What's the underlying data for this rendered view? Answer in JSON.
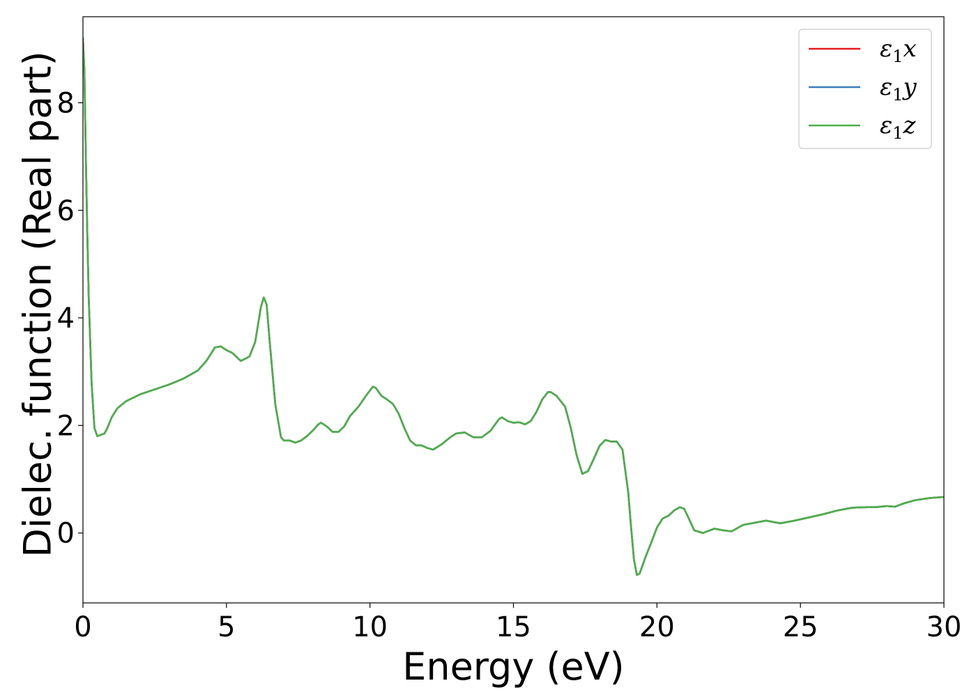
{
  "chart_data": {
    "type": "line",
    "title": "",
    "xlabel": "Energy (eV)",
    "ylabel": "Dielec. function (Real part)",
    "xlim": [
      0,
      30
    ],
    "ylim": [
      -1.3,
      9.6
    ],
    "xticks": [
      0,
      5,
      10,
      15,
      20,
      25,
      30
    ],
    "yticks": [
      0,
      2,
      4,
      6,
      8
    ],
    "grid": false,
    "legend_position": "top-right",
    "series": [
      {
        "name": "ε1x",
        "legend_main": "ε",
        "legend_sub": "1",
        "legend_var": "x",
        "color": "#e41a1c",
        "x": [
          0.0,
          0.05,
          0.1,
          0.15,
          0.2,
          0.3,
          0.4,
          0.5,
          0.6,
          0.75,
          0.85,
          1.0,
          1.2,
          1.5,
          2.0,
          2.5,
          3.0,
          3.5,
          4.0,
          4.3,
          4.6,
          4.8,
          5.0,
          5.2,
          5.5,
          5.8,
          6.0,
          6.2,
          6.3,
          6.4,
          6.5,
          6.7,
          6.9,
          7.0,
          7.2,
          7.4,
          7.6,
          7.8,
          8.0,
          8.2,
          8.3,
          8.5,
          8.7,
          8.9,
          9.1,
          9.3,
          9.6,
          9.9,
          10.1,
          10.2,
          10.4,
          10.6,
          10.8,
          11.0,
          11.2,
          11.4,
          11.6,
          11.8,
          12.0,
          12.2,
          12.5,
          12.8,
          13.0,
          13.3,
          13.6,
          13.9,
          14.2,
          14.5,
          14.6,
          14.8,
          15.0,
          15.2,
          15.4,
          15.6,
          15.8,
          16.0,
          16.2,
          16.3,
          16.5,
          16.8,
          17.0,
          17.2,
          17.4,
          17.6,
          17.8,
          18.0,
          18.2,
          18.4,
          18.6,
          18.8,
          19.0,
          19.1,
          19.2,
          19.3,
          19.4,
          19.6,
          19.8,
          20.0,
          20.2,
          20.4,
          20.6,
          20.8,
          20.95,
          21.1,
          21.3,
          21.6,
          22.0,
          22.3,
          22.6,
          23.0,
          23.3,
          23.8,
          24.3,
          24.8,
          25.3,
          25.8,
          26.3,
          26.8,
          27.3,
          27.6,
          28.0,
          28.3,
          28.6,
          29.0,
          29.5,
          30.0
        ],
        "y": [
          9.2,
          8.6,
          7.0,
          5.6,
          4.4,
          2.8,
          1.95,
          1.8,
          1.82,
          1.85,
          1.95,
          2.15,
          2.32,
          2.45,
          2.58,
          2.67,
          2.76,
          2.87,
          3.02,
          3.2,
          3.45,
          3.47,
          3.4,
          3.35,
          3.2,
          3.28,
          3.55,
          4.2,
          4.38,
          4.25,
          3.6,
          2.4,
          1.78,
          1.72,
          1.72,
          1.68,
          1.72,
          1.8,
          1.9,
          2.02,
          2.05,
          1.98,
          1.88,
          1.88,
          1.98,
          2.17,
          2.35,
          2.58,
          2.72,
          2.7,
          2.55,
          2.48,
          2.4,
          2.22,
          1.95,
          1.72,
          1.63,
          1.63,
          1.58,
          1.55,
          1.65,
          1.78,
          1.85,
          1.87,
          1.78,
          1.78,
          1.9,
          2.12,
          2.15,
          2.08,
          2.05,
          2.06,
          2.02,
          2.08,
          2.25,
          2.48,
          2.62,
          2.62,
          2.55,
          2.35,
          1.95,
          1.45,
          1.1,
          1.15,
          1.38,
          1.62,
          1.73,
          1.7,
          1.7,
          1.55,
          0.75,
          0.1,
          -0.5,
          -0.78,
          -0.75,
          -0.45,
          -0.18,
          0.1,
          0.27,
          0.32,
          0.42,
          0.48,
          0.45,
          0.28,
          0.05,
          0.0,
          0.08,
          0.05,
          0.03,
          0.15,
          0.18,
          0.23,
          0.18,
          0.23,
          0.29,
          0.35,
          0.42,
          0.47,
          0.48,
          0.48,
          0.5,
          0.49,
          0.55,
          0.61,
          0.65,
          0.67
        ]
      },
      {
        "name": "ε1y",
        "legend_main": "ε",
        "legend_sub": "1",
        "legend_var": "y",
        "color": "#377eb8",
        "x": [
          0.0,
          0.05,
          0.1,
          0.15,
          0.2,
          0.3,
          0.4,
          0.5,
          0.6,
          0.75,
          0.85,
          1.0,
          1.2,
          1.5,
          2.0,
          2.5,
          3.0,
          3.5,
          4.0,
          4.3,
          4.6,
          4.8,
          5.0,
          5.2,
          5.5,
          5.8,
          6.0,
          6.2,
          6.3,
          6.4,
          6.5,
          6.7,
          6.9,
          7.0,
          7.2,
          7.4,
          7.6,
          7.8,
          8.0,
          8.2,
          8.3,
          8.5,
          8.7,
          8.9,
          9.1,
          9.3,
          9.6,
          9.9,
          10.1,
          10.2,
          10.4,
          10.6,
          10.8,
          11.0,
          11.2,
          11.4,
          11.6,
          11.8,
          12.0,
          12.2,
          12.5,
          12.8,
          13.0,
          13.3,
          13.6,
          13.9,
          14.2,
          14.5,
          14.6,
          14.8,
          15.0,
          15.2,
          15.4,
          15.6,
          15.8,
          16.0,
          16.2,
          16.3,
          16.5,
          16.8,
          17.0,
          17.2,
          17.4,
          17.6,
          17.8,
          18.0,
          18.2,
          18.4,
          18.6,
          18.8,
          19.0,
          19.1,
          19.2,
          19.3,
          19.4,
          19.6,
          19.8,
          20.0,
          20.2,
          20.4,
          20.6,
          20.8,
          20.95,
          21.1,
          21.3,
          21.6,
          22.0,
          22.3,
          22.6,
          23.0,
          23.3,
          23.8,
          24.3,
          24.8,
          25.3,
          25.8,
          26.3,
          26.8,
          27.3,
          27.6,
          28.0,
          28.3,
          28.6,
          29.0,
          29.5,
          30.0
        ],
        "y": [
          9.2,
          8.6,
          7.0,
          5.6,
          4.4,
          2.8,
          1.95,
          1.8,
          1.82,
          1.85,
          1.95,
          2.15,
          2.32,
          2.45,
          2.58,
          2.67,
          2.76,
          2.87,
          3.02,
          3.2,
          3.45,
          3.47,
          3.4,
          3.35,
          3.2,
          3.28,
          3.55,
          4.2,
          4.38,
          4.25,
          3.6,
          2.4,
          1.78,
          1.72,
          1.72,
          1.68,
          1.72,
          1.8,
          1.9,
          2.02,
          2.05,
          1.98,
          1.88,
          1.88,
          1.98,
          2.17,
          2.35,
          2.58,
          2.72,
          2.7,
          2.55,
          2.48,
          2.4,
          2.22,
          1.95,
          1.72,
          1.63,
          1.63,
          1.58,
          1.55,
          1.65,
          1.78,
          1.85,
          1.87,
          1.78,
          1.78,
          1.9,
          2.12,
          2.15,
          2.08,
          2.05,
          2.06,
          2.02,
          2.08,
          2.25,
          2.48,
          2.62,
          2.62,
          2.55,
          2.35,
          1.95,
          1.45,
          1.1,
          1.15,
          1.38,
          1.62,
          1.73,
          1.7,
          1.7,
          1.55,
          0.75,
          0.1,
          -0.5,
          -0.78,
          -0.75,
          -0.45,
          -0.18,
          0.1,
          0.27,
          0.32,
          0.42,
          0.48,
          0.45,
          0.28,
          0.05,
          0.0,
          0.08,
          0.05,
          0.03,
          0.15,
          0.18,
          0.23,
          0.18,
          0.23,
          0.29,
          0.35,
          0.42,
          0.47,
          0.48,
          0.48,
          0.5,
          0.49,
          0.55,
          0.61,
          0.65,
          0.67
        ]
      },
      {
        "name": "ε1z",
        "legend_main": "ε",
        "legend_sub": "1",
        "legend_var": "z",
        "color": "#4daf4a",
        "x": [
          0.0,
          0.05,
          0.1,
          0.15,
          0.2,
          0.3,
          0.4,
          0.5,
          0.6,
          0.75,
          0.85,
          1.0,
          1.2,
          1.5,
          2.0,
          2.5,
          3.0,
          3.5,
          4.0,
          4.3,
          4.6,
          4.8,
          5.0,
          5.2,
          5.5,
          5.8,
          6.0,
          6.2,
          6.3,
          6.4,
          6.5,
          6.7,
          6.9,
          7.0,
          7.2,
          7.4,
          7.6,
          7.8,
          8.0,
          8.2,
          8.3,
          8.5,
          8.7,
          8.9,
          9.1,
          9.3,
          9.6,
          9.9,
          10.1,
          10.2,
          10.4,
          10.6,
          10.8,
          11.0,
          11.2,
          11.4,
          11.6,
          11.8,
          12.0,
          12.2,
          12.5,
          12.8,
          13.0,
          13.3,
          13.6,
          13.9,
          14.2,
          14.5,
          14.6,
          14.8,
          15.0,
          15.2,
          15.4,
          15.6,
          15.8,
          16.0,
          16.2,
          16.3,
          16.5,
          16.8,
          17.0,
          17.2,
          17.4,
          17.6,
          17.8,
          18.0,
          18.2,
          18.4,
          18.6,
          18.8,
          19.0,
          19.1,
          19.2,
          19.3,
          19.4,
          19.6,
          19.8,
          20.0,
          20.2,
          20.4,
          20.6,
          20.8,
          20.95,
          21.1,
          21.3,
          21.6,
          22.0,
          22.3,
          22.6,
          23.0,
          23.3,
          23.8,
          24.3,
          24.8,
          25.3,
          25.8,
          26.3,
          26.8,
          27.3,
          27.6,
          28.0,
          28.3,
          28.6,
          29.0,
          29.5,
          30.0
        ],
        "y": [
          9.2,
          8.6,
          7.0,
          5.6,
          4.4,
          2.8,
          1.95,
          1.8,
          1.82,
          1.85,
          1.95,
          2.15,
          2.32,
          2.45,
          2.58,
          2.67,
          2.76,
          2.87,
          3.02,
          3.2,
          3.45,
          3.47,
          3.4,
          3.35,
          3.2,
          3.28,
          3.55,
          4.2,
          4.38,
          4.25,
          3.6,
          2.4,
          1.78,
          1.72,
          1.72,
          1.68,
          1.72,
          1.8,
          1.9,
          2.02,
          2.05,
          1.98,
          1.88,
          1.88,
          1.98,
          2.17,
          2.35,
          2.58,
          2.72,
          2.7,
          2.55,
          2.48,
          2.4,
          2.22,
          1.95,
          1.72,
          1.63,
          1.63,
          1.58,
          1.55,
          1.65,
          1.78,
          1.85,
          1.87,
          1.78,
          1.78,
          1.9,
          2.12,
          2.15,
          2.08,
          2.05,
          2.06,
          2.02,
          2.08,
          2.25,
          2.48,
          2.62,
          2.62,
          2.55,
          2.35,
          1.95,
          1.45,
          1.1,
          1.15,
          1.38,
          1.62,
          1.73,
          1.7,
          1.7,
          1.55,
          0.75,
          0.1,
          -0.5,
          -0.78,
          -0.75,
          -0.45,
          -0.18,
          0.1,
          0.27,
          0.32,
          0.42,
          0.48,
          0.45,
          0.28,
          0.05,
          0.0,
          0.08,
          0.05,
          0.03,
          0.15,
          0.18,
          0.23,
          0.18,
          0.23,
          0.29,
          0.35,
          0.42,
          0.47,
          0.48,
          0.48,
          0.5,
          0.49,
          0.55,
          0.61,
          0.65,
          0.67
        ]
      }
    ]
  }
}
